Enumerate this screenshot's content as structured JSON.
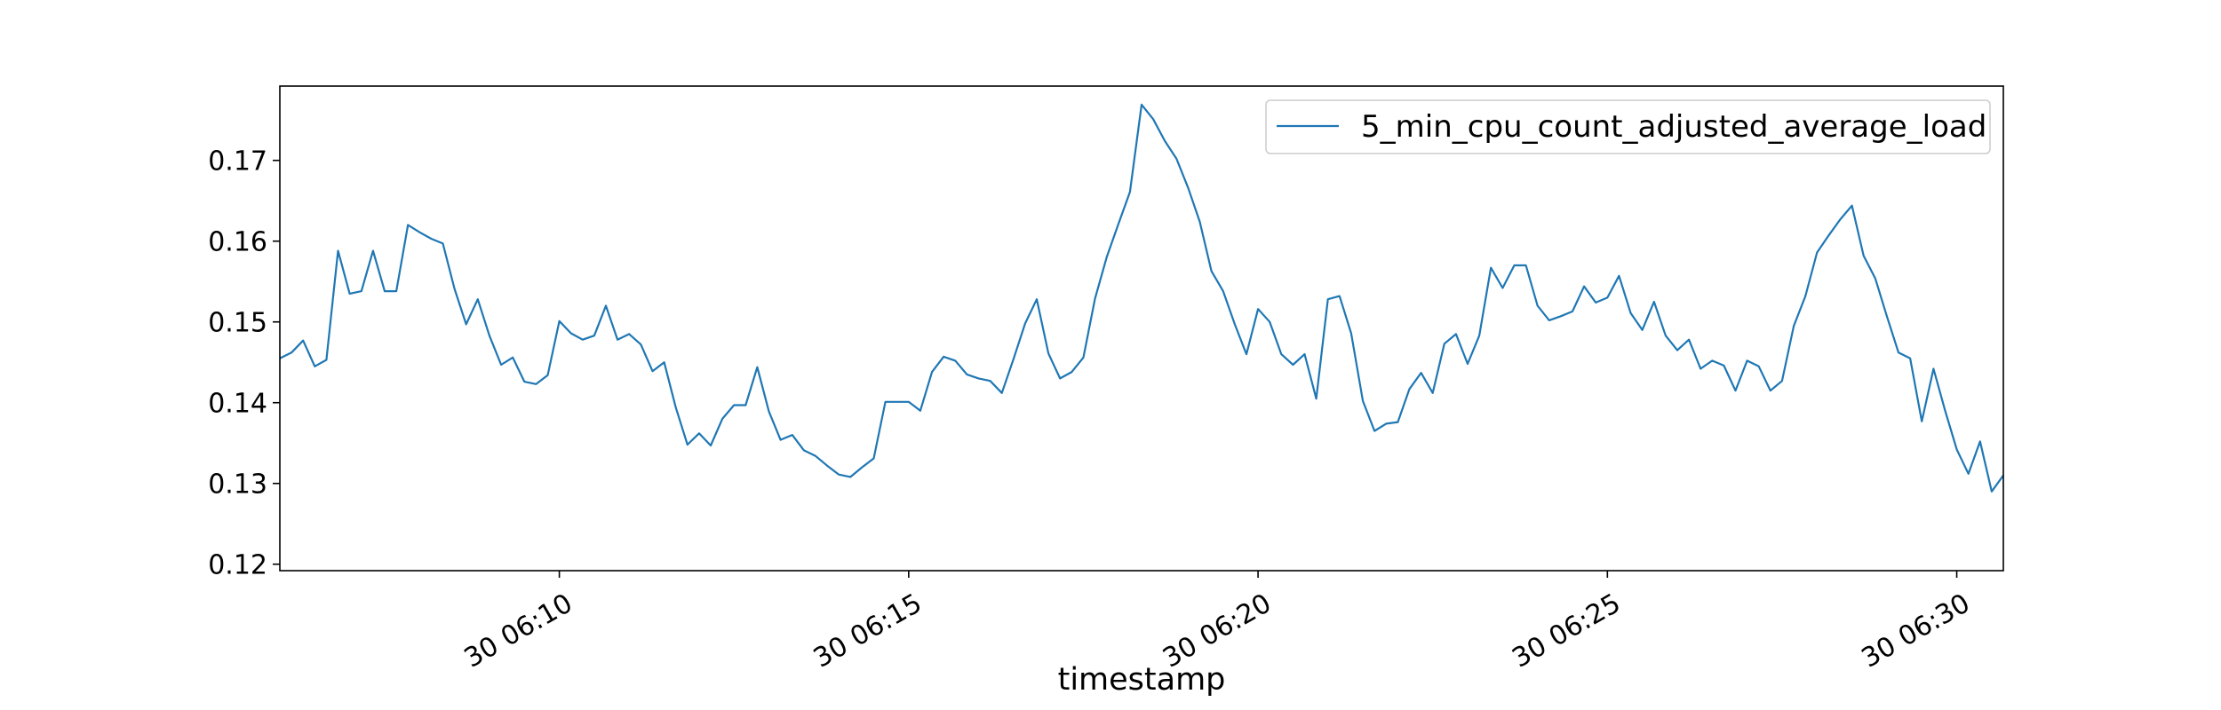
{
  "chart_data": {
    "type": "line",
    "xlabel": "timestamp",
    "ylabel": "",
    "xlim": [
      "06:06:00",
      "06:30:40"
    ],
    "ylim": [
      0.1192,
      0.1792
    ],
    "x_ticks": [
      {
        "value": "06:10:00",
        "label": "30 06:10"
      },
      {
        "value": "06:15:00",
        "label": "30 06:15"
      },
      {
        "value": "06:20:00",
        "label": "30 06:20"
      },
      {
        "value": "06:25:00",
        "label": "30 06:25"
      },
      {
        "value": "06:30:00",
        "label": "30 06:30"
      }
    ],
    "y_ticks": [
      {
        "value": 0.12,
        "label": "0.12"
      },
      {
        "value": 0.13,
        "label": "0.13"
      },
      {
        "value": 0.14,
        "label": "0.14"
      },
      {
        "value": 0.15,
        "label": "0.15"
      },
      {
        "value": 0.16,
        "label": "0.16"
      },
      {
        "value": 0.17,
        "label": "0.17"
      }
    ],
    "grid": false,
    "legend_position": "top-right",
    "series": [
      {
        "name": "5_min_cpu_count_adjusted_average_load",
        "color": "#1f77b4",
        "points": [
          [
            "06:06:00",
            0.1455
          ],
          [
            "06:06:10",
            0.1462
          ],
          [
            "06:06:20",
            0.1477
          ],
          [
            "06:06:30",
            0.1445
          ],
          [
            "06:06:40",
            0.1453
          ],
          [
            "06:06:50",
            0.1588
          ],
          [
            "06:07:00",
            0.1535
          ],
          [
            "06:07:10",
            0.1538
          ],
          [
            "06:07:20",
            0.1588
          ],
          [
            "06:07:30",
            0.1538
          ],
          [
            "06:07:40",
            0.1538
          ],
          [
            "06:07:50",
            0.162
          ],
          [
            "06:08:00",
            0.1611
          ],
          [
            "06:08:10",
            0.1603
          ],
          [
            "06:08:20",
            0.1597
          ],
          [
            "06:08:30",
            0.1541
          ],
          [
            "06:08:40",
            0.1497
          ],
          [
            "06:08:50",
            0.1528
          ],
          [
            "06:09:00",
            0.1483
          ],
          [
            "06:09:10",
            0.1447
          ],
          [
            "06:09:20",
            0.1456
          ],
          [
            "06:09:30",
            0.1426
          ],
          [
            "06:09:40",
            0.1423
          ],
          [
            "06:09:50",
            0.1434
          ],
          [
            "06:10:00",
            0.1501
          ],
          [
            "06:10:10",
            0.1486
          ],
          [
            "06:10:20",
            0.1478
          ],
          [
            "06:10:30",
            0.1483
          ],
          [
            "06:10:40",
            0.152
          ],
          [
            "06:10:50",
            0.1478
          ],
          [
            "06:11:00",
            0.1485
          ],
          [
            "06:11:10",
            0.1472
          ],
          [
            "06:11:20",
            0.1439
          ],
          [
            "06:11:30",
            0.145
          ],
          [
            "06:11:40",
            0.1394
          ],
          [
            "06:11:50",
            0.1348
          ],
          [
            "06:12:00",
            0.1362
          ],
          [
            "06:12:10",
            0.1347
          ],
          [
            "06:12:20",
            0.138
          ],
          [
            "06:12:30",
            0.1397
          ],
          [
            "06:12:40",
            0.1397
          ],
          [
            "06:12:50",
            0.1444
          ],
          [
            "06:13:00",
            0.1389
          ],
          [
            "06:13:10",
            0.1354
          ],
          [
            "06:13:20",
            0.136
          ],
          [
            "06:13:30",
            0.1341
          ],
          [
            "06:13:40",
            0.1334
          ],
          [
            "06:13:50",
            0.1322
          ],
          [
            "06:14:00",
            0.1311
          ],
          [
            "06:14:10",
            0.1308
          ],
          [
            "06:14:20",
            0.132
          ],
          [
            "06:14:30",
            0.1331
          ],
          [
            "06:14:40",
            0.1401
          ],
          [
            "06:14:50",
            0.1401
          ],
          [
            "06:15:00",
            0.1401
          ],
          [
            "06:15:10",
            0.139
          ],
          [
            "06:15:20",
            0.1438
          ],
          [
            "06:15:30",
            0.1457
          ],
          [
            "06:15:40",
            0.1452
          ],
          [
            "06:15:50",
            0.1435
          ],
          [
            "06:16:00",
            0.143
          ],
          [
            "06:16:10",
            0.1427
          ],
          [
            "06:16:20",
            0.1412
          ],
          [
            "06:16:30",
            0.1454
          ],
          [
            "06:16:40",
            0.1498
          ],
          [
            "06:16:50",
            0.1528
          ],
          [
            "06:17:00",
            0.1461
          ],
          [
            "06:17:10",
            0.143
          ],
          [
            "06:17:20",
            0.1438
          ],
          [
            "06:17:30",
            0.1456
          ],
          [
            "06:17:40",
            0.1529
          ],
          [
            "06:17:50",
            0.158
          ],
          [
            "06:18:00",
            0.1621
          ],
          [
            "06:18:10",
            0.1661
          ],
          [
            "06:18:20",
            0.1769
          ],
          [
            "06:18:30",
            0.1751
          ],
          [
            "06:18:40",
            0.1724
          ],
          [
            "06:18:50",
            0.1702
          ],
          [
            "06:19:00",
            0.1666
          ],
          [
            "06:19:10",
            0.1624
          ],
          [
            "06:19:20",
            0.1563
          ],
          [
            "06:19:30",
            0.1538
          ],
          [
            "06:19:40",
            0.1497
          ],
          [
            "06:19:50",
            0.146
          ],
          [
            "06:20:00",
            0.1516
          ],
          [
            "06:20:10",
            0.15
          ],
          [
            "06:20:20",
            0.146
          ],
          [
            "06:20:30",
            0.1447
          ],
          [
            "06:20:40",
            0.146
          ],
          [
            "06:20:50",
            0.1405
          ],
          [
            "06:21:00",
            0.1528
          ],
          [
            "06:21:10",
            0.1532
          ],
          [
            "06:21:20",
            0.1486
          ],
          [
            "06:21:30",
            0.1402
          ],
          [
            "06:21:40",
            0.1365
          ],
          [
            "06:21:50",
            0.1374
          ],
          [
            "06:22:00",
            0.1376
          ],
          [
            "06:22:10",
            0.1417
          ],
          [
            "06:22:20",
            0.1437
          ],
          [
            "06:22:30",
            0.1412
          ],
          [
            "06:22:40",
            0.1473
          ],
          [
            "06:22:50",
            0.1485
          ],
          [
            "06:23:00",
            0.1448
          ],
          [
            "06:23:10",
            0.1483
          ],
          [
            "06:23:20",
            0.1567
          ],
          [
            "06:23:30",
            0.1542
          ],
          [
            "06:23:40",
            0.157
          ],
          [
            "06:23:50",
            0.157
          ],
          [
            "06:24:00",
            0.152
          ],
          [
            "06:24:10",
            0.1502
          ],
          [
            "06:24:20",
            0.1507
          ],
          [
            "06:24:30",
            0.1513
          ],
          [
            "06:24:40",
            0.1544
          ],
          [
            "06:24:50",
            0.1524
          ],
          [
            "06:25:00",
            0.153
          ],
          [
            "06:25:10",
            0.1557
          ],
          [
            "06:25:20",
            0.1511
          ],
          [
            "06:25:30",
            0.149
          ],
          [
            "06:25:40",
            0.1525
          ],
          [
            "06:25:50",
            0.1483
          ],
          [
            "06:26:00",
            0.1465
          ],
          [
            "06:26:10",
            0.1478
          ],
          [
            "06:26:20",
            0.1442
          ],
          [
            "06:26:30",
            0.1452
          ],
          [
            "06:26:40",
            0.1446
          ],
          [
            "06:26:50",
            0.1415
          ],
          [
            "06:27:00",
            0.1452
          ],
          [
            "06:27:10",
            0.1445
          ],
          [
            "06:27:20",
            0.1415
          ],
          [
            "06:27:30",
            0.1427
          ],
          [
            "06:27:40",
            0.1495
          ],
          [
            "06:27:50",
            0.1532
          ],
          [
            "06:28:00",
            0.1586
          ],
          [
            "06:28:10",
            0.1607
          ],
          [
            "06:28:20",
            0.1627
          ],
          [
            "06:28:30",
            0.1644
          ],
          [
            "06:28:40",
            0.1582
          ],
          [
            "06:28:50",
            0.1554
          ],
          [
            "06:29:00",
            0.1507
          ],
          [
            "06:29:10",
            0.1462
          ],
          [
            "06:29:20",
            0.1455
          ],
          [
            "06:29:30",
            0.1377
          ],
          [
            "06:29:40",
            0.1442
          ],
          [
            "06:29:50",
            0.139
          ],
          [
            "06:30:00",
            0.1342
          ],
          [
            "06:30:10",
            0.1312
          ],
          [
            "06:30:20",
            0.1352
          ],
          [
            "06:30:30",
            0.129
          ],
          [
            "06:30:40",
            0.131
          ]
        ]
      }
    ]
  }
}
